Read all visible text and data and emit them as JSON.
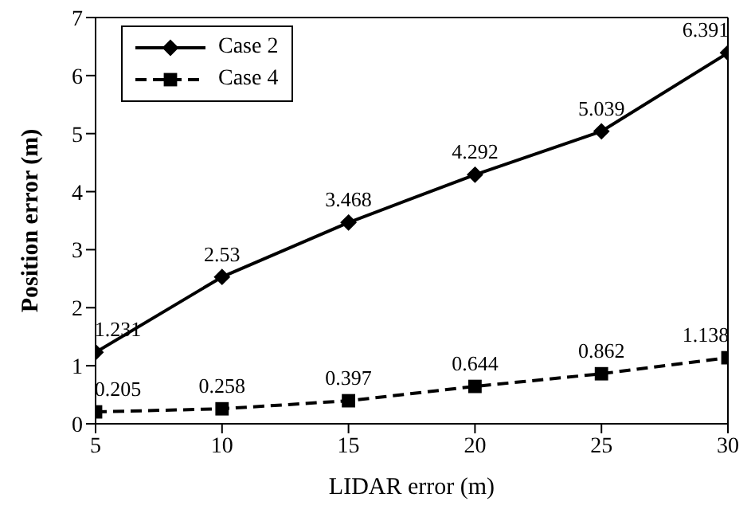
{
  "chart_data": {
    "type": "line",
    "xlabel": "LIDAR  error (m)",
    "ylabel": "Position error (m)",
    "x": [
      5,
      10,
      15,
      20,
      25,
      30
    ],
    "series": [
      {
        "name": "Case 2",
        "color": "#000000",
        "marker": "diamond",
        "line_style": "solid",
        "values": [
          1.231,
          2.53,
          3.468,
          4.292,
          5.039,
          6.391
        ]
      },
      {
        "name": "Case 4",
        "color": "#000000",
        "marker": "square",
        "line_style": "dashed",
        "values": [
          0.205,
          0.258,
          0.397,
          0.644,
          0.862,
          1.138
        ]
      }
    ],
    "xlim": [
      5,
      30
    ],
    "xticks": [
      5,
      10,
      15,
      20,
      25,
      30
    ],
    "ylim": [
      0,
      7
    ],
    "yticks": [
      0,
      1,
      2,
      3,
      4,
      5,
      6,
      7
    ],
    "data_labels": true,
    "legend": "top left",
    "grid": false
  }
}
